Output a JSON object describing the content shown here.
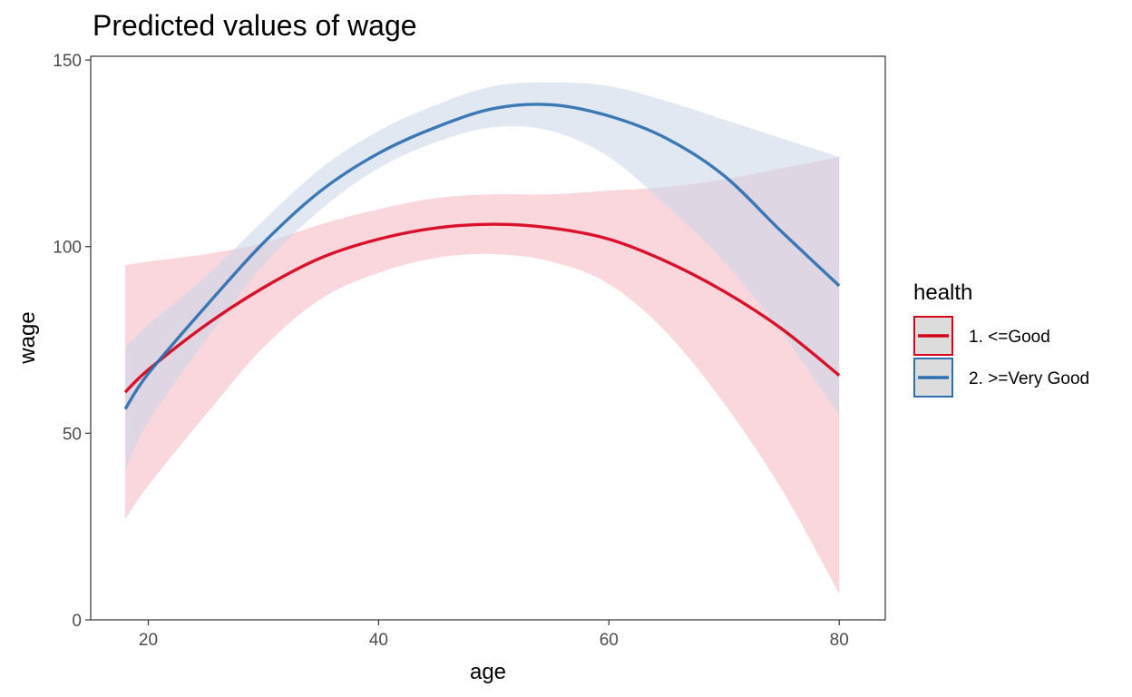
{
  "chart_data": {
    "type": "line",
    "title": "Predicted values of wage",
    "xlabel": "age",
    "ylabel": "wage",
    "xlim": [
      15,
      84
    ],
    "ylim": [
      0,
      151
    ],
    "x_ticks": [
      20,
      40,
      60,
      80
    ],
    "y_ticks": [
      0,
      50,
      100,
      150
    ],
    "grid": false,
    "legend": {
      "title": "health",
      "placement": "right"
    },
    "series": [
      {
        "name": "1. <=Good",
        "color": "#d7001a",
        "ribbon_color": "#f4b6bf",
        "x": [
          18,
          20,
          25,
          30,
          35,
          40,
          45,
          50,
          55,
          60,
          65,
          70,
          75,
          80
        ],
        "y": [
          61,
          67,
          79,
          89,
          97,
          102,
          105,
          106,
          105,
          102,
          96,
          88,
          78,
          65.5
        ],
        "lower": [
          27,
          36,
          55,
          73,
          86,
          93,
          97,
          98,
          96,
          90,
          77,
          58,
          35,
          7
        ],
        "upper": [
          95,
          96,
          98,
          101,
          106,
          110,
          113,
          114,
          114,
          115,
          116,
          118,
          121,
          124
        ]
      },
      {
        "name": "2. >=Very Good",
        "color": "#2d6fb0",
        "ribbon_color": "#c8d6e8",
        "x": [
          18,
          20,
          25,
          30,
          35,
          40,
          45,
          50,
          55,
          60,
          65,
          70,
          75,
          80
        ],
        "y": [
          56.5,
          66,
          84,
          101,
          115,
          125,
          132,
          137,
          138,
          135,
          129,
          119,
          104,
          89.5
        ],
        "lower": [
          40,
          53,
          75,
          95,
          110,
          121,
          128,
          132,
          131,
          124,
          111,
          96,
          77,
          55
        ],
        "upper": [
          73,
          79,
          92,
          107,
          121,
          131,
          138,
          143,
          144,
          143,
          139,
          134,
          129,
          124
        ]
      }
    ]
  }
}
